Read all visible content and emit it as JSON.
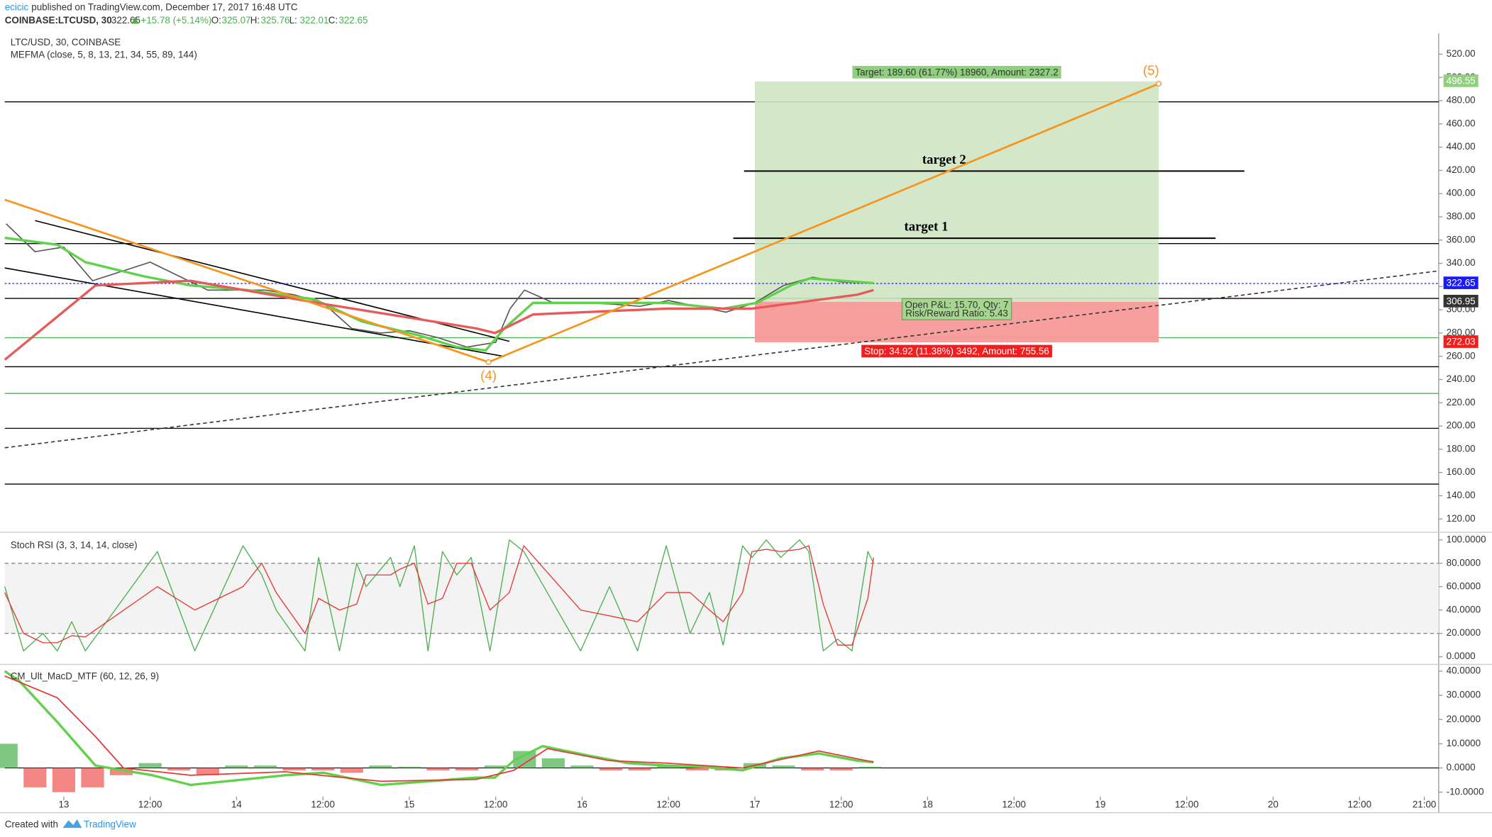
{
  "header": {
    "author": "ecicic",
    "published": " published on TradingView.com, December 17, 2017 16:48 UTC",
    "symbol": "COINBASE:LTCUSD, 30",
    "last": "322.65",
    "change": "+15.78 (+5.14%)",
    "ohlc": [
      {
        "key": "O:",
        "value": "325.07"
      },
      {
        "key": "H:",
        "value": "325.76"
      },
      {
        "key": "L:",
        "value": "322.01"
      },
      {
        "key": "C:",
        "value": "322.65"
      }
    ]
  },
  "footer": {
    "created": "Created with",
    "brand": "TradingView"
  },
  "time_axis": {
    "xlim": [
      -8.2,
      191
    ],
    "xticks": [
      {
        "value": 0,
        "label": "13"
      },
      {
        "value": 12,
        "label": "12:00"
      },
      {
        "value": 24,
        "label": "14"
      },
      {
        "value": 36,
        "label": "12:00"
      },
      {
        "value": 48,
        "label": "15"
      },
      {
        "value": 60,
        "label": "12:00"
      },
      {
        "value": 72,
        "label": "16"
      },
      {
        "value": 84,
        "label": "12:00"
      },
      {
        "value": 96,
        "label": "17"
      },
      {
        "value": 108,
        "label": "12:00"
      },
      {
        "value": 120,
        "label": "18"
      },
      {
        "value": 132,
        "label": "12:00"
      },
      {
        "value": 144,
        "label": "19"
      },
      {
        "value": 156,
        "label": "12:00"
      },
      {
        "value": 168,
        "label": "20"
      },
      {
        "value": 180,
        "label": "12:00"
      },
      {
        "value": 189,
        "label": "21:00"
      }
    ]
  },
  "chart_data": [
    {
      "type": "line",
      "title": "LTC/USD, 30, COINBASE",
      "subtitle": "MEFMA (close, 5, 8, 13, 21, 34, 55, 89, 144)",
      "ylim": [
        111,
        538
      ],
      "yticks": [
        {
          "value": 120,
          "label": "120.00"
        },
        {
          "value": 140,
          "label": "140.00"
        },
        {
          "value": 160,
          "label": "160.00"
        },
        {
          "value": 180,
          "label": "180.00"
        },
        {
          "value": 200,
          "label": "200.00"
        },
        {
          "value": 220,
          "label": "220.00"
        },
        {
          "value": 240,
          "label": "240.00"
        },
        {
          "value": 260,
          "label": "260.00"
        },
        {
          "value": 280,
          "label": "280.00"
        },
        {
          "value": 300,
          "label": "300.00"
        },
        {
          "value": 320,
          "label": "320.00"
        },
        {
          "value": 340,
          "label": "340.00"
        },
        {
          "value": 360,
          "label": "360.00"
        },
        {
          "value": 380,
          "label": "380.00"
        },
        {
          "value": 400,
          "label": "400.00"
        },
        {
          "value": 420,
          "label": "420.00"
        },
        {
          "value": 440,
          "label": "440.00"
        },
        {
          "value": 460,
          "label": "460.00"
        },
        {
          "value": 480,
          "label": "480.00"
        },
        {
          "value": 500,
          "label": "500.00"
        },
        {
          "value": 520,
          "label": "520.00"
        }
      ],
      "x": [
        -8,
        -4,
        0,
        4,
        8,
        12,
        16,
        20,
        24,
        28,
        32,
        36,
        40,
        44,
        48,
        52,
        56,
        60,
        62,
        64,
        68,
        72,
        76,
        80,
        84,
        88,
        92,
        96,
        100,
        104,
        108,
        112
      ],
      "series": [
        {
          "color": "#555555",
          "width": 1.2,
          "values": [
            374,
            350,
            354,
            325,
            333,
            341,
            329,
            317,
            317,
            317,
            313,
            306,
            284,
            280,
            282,
            276,
            268,
            272,
            301,
            317,
            306,
            306,
            305,
            303,
            308,
            303,
            298,
            306,
            321,
            328,
            324,
            323
          ]
        },
        {
          "color": "#5fd14a",
          "width": 2.5,
          "x": [
            -8.2,
            -0.9,
            3.0,
            11.0,
            17.6,
            25.5,
            34.8,
            41.4,
            49.3,
            54.6,
            58.6,
            61.2,
            65.2,
            73.1,
            83.7,
            91.6,
            96.3,
            101.0,
            103.6,
            112.5
          ],
          "values": [
            362,
            356,
            341,
            329,
            321,
            317,
            309,
            290,
            278,
            268,
            265,
            284,
            306,
            306,
            306,
            301,
            306,
            321,
            327,
            323
          ]
        },
        {
          "color": "#e85a5a",
          "width": 2.5,
          "x": [
            -8.2,
            4.4,
            17.6,
            36.1,
            57.3,
            59.9,
            65.2,
            83.7,
            95.6,
            110.2,
            112.5
          ],
          "values": [
            257,
            321,
            325,
            305,
            284,
            280,
            296,
            301,
            301,
            313,
            317
          ]
        }
      ],
      "last_price": 322.65,
      "levels": [
        {
          "value": 479,
          "color": "#000000"
        },
        {
          "value": 357,
          "color": "#000000"
        },
        {
          "value": 309.8,
          "color": "#000000"
        },
        {
          "value": 276,
          "color": "#4caf50"
        },
        {
          "value": 251,
          "color": "#000000"
        },
        {
          "value": 228,
          "color": "#4caf50"
        },
        {
          "value": 198,
          "color": "#000000"
        },
        {
          "value": 150,
          "color": "#000000"
        }
      ],
      "trendlines": [
        {
          "x": [
            -4,
            61.9
          ],
          "values": [
            376.8,
            272.9
          ],
          "color": "#000000"
        },
        {
          "x": [
            -8.2,
            61.2
          ],
          "values": [
            336,
            259.9
          ],
          "color": "#000000"
        },
        {
          "x": [
            -8.2,
            191
          ],
          "values": [
            181.3,
            333.5
          ],
          "color": "#333333",
          "dashed": true
        }
      ],
      "wave_line": {
        "color": "#f7941d",
        "x": [
          -8.2,
          59,
          152.1
        ],
        "values": [
          394.8,
          255,
          494.6
        ],
        "labels": [
          null,
          "(4)",
          "(5)"
        ]
      },
      "target_lines": [
        {
          "label": "target 1",
          "value": 361.6,
          "x": [
            93,
            160
          ]
        },
        {
          "label": "target 2",
          "value": 419.4,
          "x": [
            94.5,
            164
          ]
        }
      ],
      "position": {
        "x": [
          96,
          152.1
        ],
        "entry": 306.95,
        "target": 496.55,
        "stop": 272.03,
        "target_label": "Target: 189.60 (61.77%) 18960, Amount: 2327.2",
        "pnl_label": "Open P&L: 15.70, Qty: 7",
        "rr_label": "Risk/Reward Ratio: 5.43",
        "stop_label": "Stop: 34.92 (11.38%) 3492, Amount: 755.56"
      }
    },
    {
      "type": "line",
      "title": "Stoch RSI (3, 3, 14, 14, close)",
      "ylim": [
        -4.9,
        104.9
      ],
      "yticks": [
        {
          "value": 0,
          "label": "0.0000"
        },
        {
          "value": 20,
          "label": "20.0000"
        },
        {
          "value": 40,
          "label": "40.0000"
        },
        {
          "value": 60,
          "label": "60.0000"
        },
        {
          "value": 80,
          "label": "80.0000"
        },
        {
          "value": 100,
          "label": "100.0000"
        }
      ],
      "bands": [
        20,
        80
      ],
      "x": [
        -8.2,
        -5.6,
        -2.9,
        -0.9,
        1.1,
        3.0,
        13.0,
        18.2,
        24.9,
        27.5,
        29.5,
        33.5,
        35.4,
        38.3,
        40.7,
        42.0,
        45.4,
        46.7,
        48.7,
        50.6,
        52.6,
        54.6,
        56.6,
        59.2,
        61.9,
        63.9,
        71.8,
        75.8,
        79.7,
        83.7,
        87.0,
        89.7,
        91.6,
        94.3,
        95.6,
        97.6,
        99.6,
        102.2,
        103.5,
        105.5,
        107.5,
        109.5,
        111.7,
        112.5
      ],
      "series": [
        {
          "color": "#4caf50",
          "width": 1,
          "values": [
            60,
            5,
            20,
            5,
            30,
            5,
            90,
            5,
            95,
            70,
            40,
            5,
            85,
            5,
            80,
            60,
            85,
            60,
            95,
            5,
            90,
            70,
            85,
            5,
            100,
            90,
            5,
            60,
            5,
            95,
            20,
            55,
            10,
            95,
            85,
            100,
            85,
            100,
            90,
            5,
            15,
            5,
            90,
            80
          ]
        },
        {
          "color": "#e53935",
          "width": 1,
          "values": [
            55,
            20,
            12,
            12,
            18,
            17,
            60,
            40,
            60,
            80,
            55,
            20,
            50,
            40,
            45,
            70,
            70,
            75,
            80,
            45,
            50,
            80,
            80,
            40,
            55,
            95,
            40,
            35,
            30,
            55,
            55,
            40,
            30,
            55,
            90,
            92,
            90,
            92,
            95,
            45,
            10,
            10,
            50,
            85
          ]
        }
      ]
    },
    {
      "type": "line",
      "title": "CM_Ult_MacD_MTF (60, 12, 26, 9)",
      "ylim": [
        -11.8,
        42.4
      ],
      "yticks": [
        {
          "value": -10,
          "label": "-10.0000"
        },
        {
          "value": 0,
          "label": "0.0000"
        },
        {
          "value": 10,
          "label": "10.0000"
        },
        {
          "value": 20,
          "label": "20.0000"
        },
        {
          "value": 30,
          "label": "30.0000"
        },
        {
          "value": 40,
          "label": "40.0000"
        }
      ],
      "series": [
        {
          "color": "#5fd14a",
          "width": 2.5,
          "x": [
            -8.2,
            -6.2,
            -0.9,
            4.4,
            8.3,
            12.3,
            17.6,
            24.2,
            30.8,
            36.1,
            44.1,
            50.6,
            57.3,
            59.9,
            62.5,
            66.5,
            73.1,
            78.4,
            83.7,
            89.0,
            94.3,
            99.6,
            104.9,
            110.2,
            112.5
          ],
          "values": [
            40,
            36,
            19,
            1,
            -1,
            -3,
            -7,
            -5,
            -3,
            -2,
            -7,
            -5.5,
            -4,
            -4,
            3,
            9,
            5,
            2,
            1,
            0.4,
            -1,
            4,
            6,
            3,
            2.4
          ]
        },
        {
          "color": "#e53935",
          "width": 1.3,
          "x": [
            -8.2,
            -0.9,
            4.4,
            8.3,
            17.6,
            30.8,
            44.1,
            57.3,
            62.5,
            67.2,
            75.8,
            83.7,
            94.3,
            104.9,
            112.5
          ],
          "values": [
            38,
            29,
            13,
            0,
            -3,
            -1.6,
            -5.5,
            -4.7,
            -1,
            8,
            3,
            2,
            0,
            7,
            2.4
          ]
        }
      ],
      "histogram": {
        "up_color": "#4caf50",
        "down_color": "#ef5350",
        "x": [
          -8,
          -4,
          0,
          4,
          8,
          12,
          16,
          20,
          24,
          28,
          32,
          36,
          40,
          44,
          48,
          52,
          56,
          60,
          64,
          68,
          72,
          76,
          80,
          84,
          88,
          92,
          96,
          100,
          104,
          108,
          112
        ],
        "values": [
          10,
          -8,
          -10,
          -8,
          -3,
          2,
          -1,
          -3,
          1,
          1,
          -1,
          -1,
          -2,
          1,
          0.5,
          -1,
          -1,
          1,
          7,
          4,
          1,
          -1,
          -1,
          1,
          -1,
          -1,
          2,
          1,
          -1,
          -1,
          0.5
        ]
      }
    }
  ]
}
